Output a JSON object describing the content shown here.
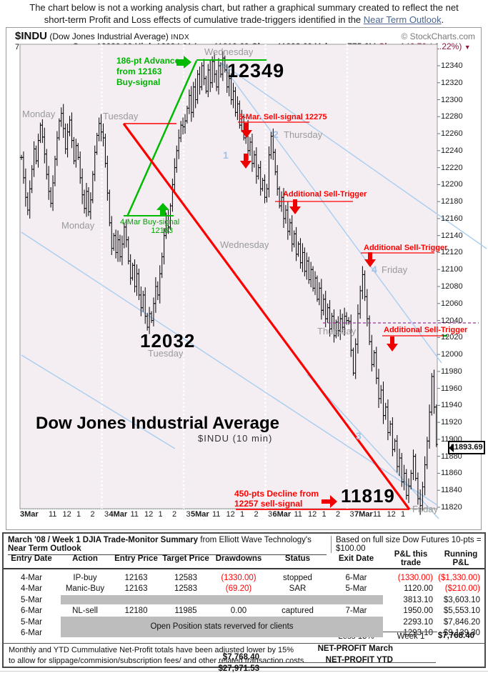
{
  "intro": {
    "line1": "The chart below is not a working analysis chart, but rather a graphical summary created to reflect the net",
    "line2_prefix": "short-term Profit and Loss effects of cumulative trade-triggers identified in the ",
    "link_text": "Near Term Outlook",
    "line2_suffix": "."
  },
  "header": {
    "symbol": "$INDU",
    "name": "(Dow Jones Industrial Average)",
    "exchange": "INDX",
    "copyright": "© StockCharts.com",
    "date": "7-Mar-2008",
    "open_label": "Open",
    "open": "12039.09",
    "high_label": "High",
    "high": "12094.21",
    "low_label": "Low",
    "low": "11819.69",
    "close_label": "Close",
    "close": "11893.69",
    "volume_label": "Volume",
    "volume": "775.6M",
    "chg_label": "Chg",
    "chg": "-146.70 (-1.22%)"
  },
  "annotations": {
    "advance1": "186-pt Advance",
    "advance2": "from 12163",
    "advance3": "Buy-signal",
    "buy1": "4-Mar Buy-signal",
    "buy2": "12163",
    "sell_signal": "5-Mar.  Sell-signal 12275",
    "trigger": "Additional  Sell-Trigger",
    "decline1": "450-pts Decline from",
    "decline2": "12257 sell-signal",
    "peak": "12349",
    "low_tue": "12032",
    "low_fri": "11819",
    "title": "Dow Jones Industrial Average",
    "subtitle": "$INDU (10 min)",
    "last_price": "11893.69",
    "monday": "Monday",
    "tuesday": "Tuesday",
    "wednesday": "Wednesday",
    "thursday": "Thursday",
    "friday": "Friday",
    "wave1": "1",
    "wave2": "2",
    "wave3": "3",
    "wave4": "4"
  },
  "chart_data": {
    "type": "bar",
    "subtype": "intraday-ohlc-10min",
    "title": "Dow Jones Industrial Average",
    "symbol": "$INDU (10 min)",
    "ylim": [
      11816,
      12366
    ],
    "y_ticks": [
      12340,
      12320,
      12300,
      12280,
      12260,
      12240,
      12220,
      12200,
      12180,
      12160,
      12140,
      12120,
      12100,
      12080,
      12060,
      12040,
      12020,
      12000,
      11980,
      11960,
      11940,
      11920,
      11900,
      11880,
      11860,
      11840,
      11820
    ],
    "x_axis": {
      "day_labels": [
        "3Mar",
        "4Mar",
        "5Mar",
        "6Mar",
        "7Mar"
      ],
      "hour_labels": [
        "11",
        "12",
        "1",
        "2",
        "3"
      ],
      "friday_hour_count": 3,
      "tail_label": "Friday"
    },
    "key_levels": {
      "wednesday_high": 12349,
      "tuesday_low": 12032,
      "friday_low": 11819,
      "buy_signal": 12163,
      "sell_signal": 12275,
      "decline_origin": 12257,
      "advance_points": 186,
      "decline_points": 450,
      "last": 11893.69,
      "thursday_close_ref": 12040
    },
    "series_10min": [
      [
        12232,
        12208,
        12185,
        12170,
        12195,
        12218,
        12242,
        12228,
        12252,
        12270,
        12256,
        12236,
        12212,
        12192,
        12178,
        12202,
        12230,
        12255,
        12275,
        12284,
        12266,
        12242,
        12262,
        12276,
        12252,
        12228,
        12246,
        12232,
        12208,
        12188,
        12172,
        12192,
        12168,
        12182,
        12212,
        12238,
        12258,
        12272,
        12262
      ],
      [
        12255,
        12225,
        12190,
        12155,
        12125,
        12140,
        12120,
        12135,
        12115,
        12130,
        12150,
        12135,
        12110,
        12090,
        12105,
        12080,
        12095,
        12070,
        12055,
        12070,
        12045,
        12032,
        12048,
        12040,
        12060,
        12080,
        12070,
        12095,
        12115,
        12140,
        12163,
        12150,
        12175,
        12200,
        12220,
        12240,
        12255,
        12270,
        12268
      ],
      [
        12275,
        12290,
        12305,
        12285,
        12315,
        12300,
        12330,
        12315,
        12340,
        12325,
        12310,
        12335,
        12320,
        12345,
        12330,
        12315,
        12340,
        12330,
        12349,
        12335,
        12315,
        12325,
        12300,
        12310,
        12285,
        12295,
        12270,
        12280,
        12255,
        12265,
        12240,
        12250,
        12225,
        12235,
        12210,
        12220,
        12195,
        12205,
        12185
      ],
      [
        12195,
        12235,
        12257,
        12238,
        12215,
        12195,
        12175,
        12185,
        12160,
        12170,
        12145,
        12155,
        12130,
        12142,
        12118,
        12130,
        12108,
        12120,
        12098,
        12110,
        12088,
        12100,
        12078,
        12090,
        12065,
        12078,
        12052,
        12065,
        12042,
        12055,
        12030,
        12045,
        12022,
        12038,
        12028,
        12042,
        12032,
        12045,
        12040
      ],
      [
        12039,
        12005,
        11978,
        12012,
        12048,
        12075,
        12094,
        12068,
        12042,
        12015,
        11988,
        12002,
        11972,
        11948,
        11958,
        11928,
        11938,
        11908,
        11918,
        11888,
        11898,
        11868,
        11878,
        11850,
        11860,
        11834,
        11845,
        11860,
        11880,
        11854,
        11830,
        11822,
        11844,
        11870,
        11898,
        11932,
        11974,
        11938,
        11894
      ]
    ]
  },
  "table": {
    "title_seg1": "March '08 / Week 1 DJIA ",
    "title_seg2": "Trade-Monitor Summary ",
    "title_seg3": "from Elliott Wave Technology's ",
    "title_seg4": "Near Term Outlook",
    "title_right": "Based on full size Dow Futures 10-pts = $100.00",
    "columns": [
      "Entry Date",
      "Action",
      "Entry Price",
      "Target Price",
      "Drawdowns",
      "Status",
      "Exit Date",
      "P&L this trade",
      "Running P&L"
    ],
    "rows": [
      {
        "entry": "4-Mar",
        "action": "IP-buy",
        "price": "12163",
        "target": "12583",
        "drawdown": "(1330.00)",
        "status": "stopped",
        "exit": "6-Mar",
        "pl": "(1330.00)",
        "run": "($1,330.00)"
      },
      {
        "entry": "4-Mar",
        "action": "Manic-Buy",
        "price": "12163",
        "target": "12583",
        "drawdown": "(69.20)",
        "status": "SAR",
        "exit": "5-Mar",
        "pl": "1120.00",
        "run": "($210.00)"
      },
      {
        "entry": "5-Mar",
        "pl": "3813.10",
        "run": "$3,603.10"
      },
      {
        "entry": "6-Mar",
        "action": "NL-sell",
        "price": "12180",
        "target": "11985",
        "drawdown": "0.00",
        "status": "captured",
        "exit": "7-Mar",
        "pl": "1950.00",
        "run": "$5,553.10"
      },
      {
        "entry": "5-Mar",
        "pl": "2293.10",
        "run": "$7,846.20"
      },
      {
        "entry": "6-Mar",
        "pl": "1293.10",
        "run": "$9,139.30"
      }
    ],
    "band_text": "Open Position stats reverved for clients",
    "summary": {
      "less": "Less 15%",
      "week": "Week 1",
      "total": "$7,768.40"
    },
    "footer_line1": "Monthly and YTD Cummulative Net-Profit totals have been adjusted lower by 15%",
    "footer_line2": "to allow for slippage/commision/subscription fees/ and other related transaction costs.",
    "net_march_label": "NET-PROFIT March",
    "net_march_value": "$7,768.40",
    "net_ytd_label": "NET-PROFIT YTD",
    "net_ytd_value": "$27,971.53"
  }
}
